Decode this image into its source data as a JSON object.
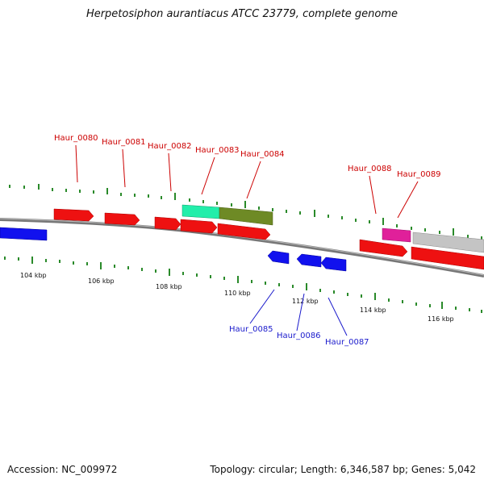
{
  "title": "Herpetosiphon aurantiacus ATCC 23779, complete genome",
  "accession": "Accession: NC_009972",
  "summary": "Topology: circular; Length: 6,346,587 bp; Genes: 5,042",
  "ruler": [
    "104 kbp",
    "106 kbp",
    "108 kbp",
    "110 kbp",
    "112 kbp",
    "114 kbp",
    "116 kbp"
  ],
  "labels_top": [
    "Haur_0080",
    "Haur_0081",
    "Haur_0082",
    "Haur_0083",
    "Haur_0084",
    "Haur_0088",
    "Haur_0089"
  ],
  "labels_bottom": [
    "Haur_0085",
    "Haur_0086",
    "Haur_0087"
  ],
  "colors": {
    "forward_gene": "#ee1111",
    "reverse_gene": "#1111ee",
    "teal_gene": "#22eeaa",
    "olive_gene": "#6e8a25",
    "magenta_gene": "#e0209a",
    "gray_gene": "#c4c4c4",
    "tick": "#2a8a2a",
    "backbone": "#777777",
    "label_top": "#cc0000",
    "label_bottom": "#1a1acc"
  }
}
